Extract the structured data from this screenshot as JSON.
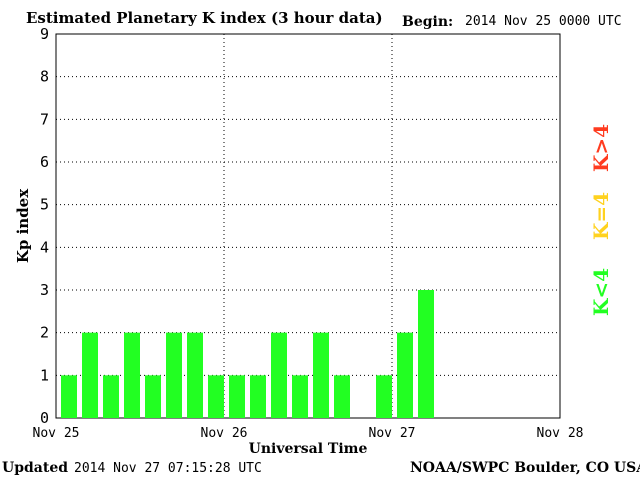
{
  "header": {
    "title": "Estimated Planetary K index (3 hour data)",
    "begin_label": "Begin:",
    "begin_value": "2014 Nov 25 0000 UTC"
  },
  "footer": {
    "updated_label": "Updated",
    "updated_value": "2014 Nov 27 07:15:28 UTC",
    "source": "NOAA/SWPC Boulder, CO USA"
  },
  "legend": [
    {
      "label": "K>4",
      "color": "#ff3b1f"
    },
    {
      "label": "K=4",
      "color": "#ffd21f"
    },
    {
      "label": "K<4",
      "color": "#22ff22"
    }
  ],
  "chart_data": {
    "type": "bar",
    "xlabel": "Universal Time",
    "ylabel": "Kp index",
    "ylim": [
      0,
      9
    ],
    "yticks": [
      0,
      1,
      2,
      3,
      4,
      5,
      6,
      7,
      8,
      9
    ],
    "x_tick_labels": [
      "Nov 25",
      "Nov 26",
      "Nov 27",
      "Nov 28"
    ],
    "grid": true,
    "bar_color": "#22ff22",
    "values": [
      1,
      2,
      1,
      2,
      1,
      2,
      2,
      1,
      1,
      1,
      2,
      1,
      2,
      1,
      null,
      1,
      2,
      3
    ]
  }
}
